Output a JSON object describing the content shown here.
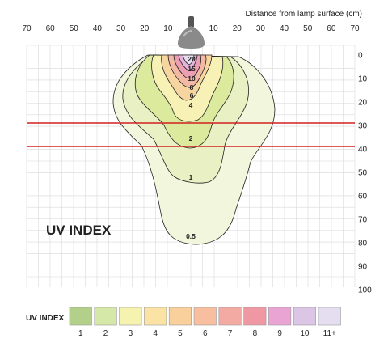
{
  "diagram": {
    "axis_title": "Distance from lamp surface (cm)",
    "x_labels": [
      "70",
      "60",
      "50",
      "40",
      "30",
      "20",
      "10",
      "10",
      "20",
      "30",
      "40",
      "50",
      "60",
      "70"
    ],
    "y_labels": [
      "0",
      "10",
      "20",
      "30",
      "40",
      "50",
      "60",
      "70",
      "80",
      "90",
      "100"
    ],
    "reference_lines_cm": [
      30,
      40
    ],
    "reference_line_color": "#d32020",
    "uv_index_title": "UV INDEX",
    "contour_labels": [
      "20",
      "15",
      "10",
      "8",
      "6",
      "4",
      "2",
      "1",
      "0.5"
    ]
  },
  "legend": {
    "title": "UV INDEX",
    "items": [
      {
        "label": "1",
        "color": "#b3d08a"
      },
      {
        "label": "2",
        "color": "#d6e8a8"
      },
      {
        "label": "3",
        "color": "#f6f3b0"
      },
      {
        "label": "4",
        "color": "#fbe3a6"
      },
      {
        "label": "5",
        "color": "#f9cf9b"
      },
      {
        "label": "6",
        "color": "#f7bfa0"
      },
      {
        "label": "7",
        "color": "#f3aaa3"
      },
      {
        "label": "8",
        "color": "#ef97a3"
      },
      {
        "label": "9",
        "color": "#e9a4d4"
      },
      {
        "label": "10",
        "color": "#dcc6e5"
      },
      {
        "label": "11+",
        "color": "#e4def0"
      }
    ]
  }
}
